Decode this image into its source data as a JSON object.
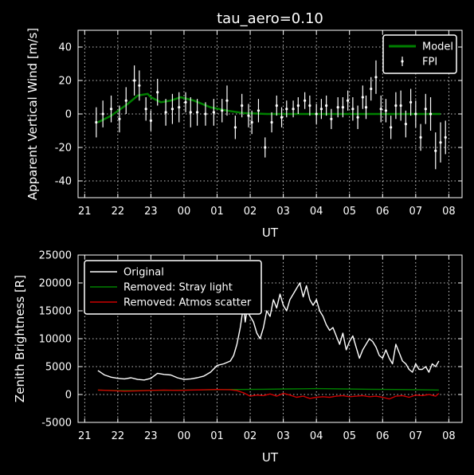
{
  "chart_data": [
    {
      "type": "line",
      "title": "tau_aero=0.10",
      "xlabel": "UT",
      "ylabel": "Apparent Vertical Wind [m/s]",
      "xlim": [
        20.8,
        32.4
      ],
      "ylim": [
        -50,
        50
      ],
      "xticks": [
        21,
        22,
        23,
        24,
        25,
        26,
        27,
        28,
        29,
        30,
        31,
        32
      ],
      "xtick_labels": [
        "21",
        "22",
        "23",
        "00",
        "01",
        "02",
        "03",
        "04",
        "05",
        "06",
        "07",
        "08"
      ],
      "yticks": [
        -40,
        -20,
        0,
        20,
        40
      ],
      "grid": true,
      "legend_position": "top-right",
      "series": [
        {
          "name": "Model",
          "kind": "line",
          "color": "#008000",
          "x": [
            21.4,
            21.8,
            22.3,
            22.6,
            22.9,
            23.0,
            23.3,
            23.6,
            23.9,
            24.3,
            24.8,
            25.3,
            25.8,
            26.5,
            27.5,
            28.5,
            29.5,
            30.5,
            31.3,
            31.75
          ],
          "y": [
            -5,
            -1,
            6,
            11,
            12,
            10,
            7,
            8,
            10,
            8,
            4,
            2,
            0.5,
            0,
            0,
            0,
            0,
            0,
            0,
            0
          ]
        },
        {
          "name": "FPI",
          "kind": "errorbar",
          "color": "#ffffff",
          "x": [
            21.35,
            21.55,
            21.8,
            22.05,
            22.25,
            22.5,
            22.65,
            22.85,
            23.0,
            23.2,
            23.45,
            23.65,
            23.85,
            24.05,
            24.2,
            24.4,
            24.65,
            24.9,
            25.15,
            25.3,
            25.55,
            25.75,
            25.95,
            26.05,
            26.25,
            26.45,
            26.65,
            26.8,
            26.95,
            27.1,
            27.3,
            27.45,
            27.65,
            27.8,
            28.0,
            28.15,
            28.3,
            28.45,
            28.65,
            28.8,
            28.95,
            29.1,
            29.25,
            29.4,
            29.5,
            29.65,
            29.8,
            29.95,
            30.1,
            30.25,
            30.4,
            30.55,
            30.7,
            30.85,
            31.0,
            31.15,
            31.3,
            31.45,
            31.6,
            31.75,
            31.9
          ],
          "y": [
            -5,
            0,
            3,
            -3,
            8,
            20,
            17,
            3,
            -4,
            13,
            1,
            3,
            4,
            7,
            1,
            1,
            0,
            1,
            2,
            8,
            -8,
            5,
            -1,
            -5,
            2,
            -20,
            -5,
            5,
            -2,
            3,
            3,
            5,
            8,
            5,
            0,
            3,
            5,
            -3,
            4,
            4,
            8,
            3,
            -2,
            10,
            4,
            15,
            22,
            3,
            2,
            -8,
            5,
            5,
            -6,
            7,
            0,
            -14,
            3,
            0,
            -22,
            -17,
            -14
          ],
          "yerr": [
            9,
            8,
            8,
            8,
            8,
            9,
            9,
            7,
            6,
            8,
            8,
            9,
            9,
            6,
            9,
            8,
            7,
            8,
            7,
            9,
            7,
            7,
            7,
            7,
            7,
            6,
            6,
            6,
            6,
            5,
            5,
            5,
            5,
            6,
            6,
            6,
            6,
            6,
            6,
            6,
            6,
            7,
            7,
            7,
            7,
            7,
            10,
            8,
            7,
            7,
            8,
            9,
            8,
            8,
            8,
            8,
            9,
            10,
            11,
            12,
            10
          ]
        }
      ]
    },
    {
      "type": "line",
      "title": "",
      "xlabel": "UT",
      "ylabel": "Zenith Brightness [R]",
      "xlim": [
        20.8,
        32.4
      ],
      "ylim": [
        -5000,
        25000
      ],
      "xticks": [
        21,
        22,
        23,
        24,
        25,
        26,
        27,
        28,
        29,
        30,
        31,
        32
      ],
      "xtick_labels": [
        "21",
        "22",
        "23",
        "00",
        "01",
        "02",
        "03",
        "04",
        "05",
        "06",
        "07",
        "08"
      ],
      "yticks": [
        -5000,
        0,
        5000,
        10000,
        15000,
        20000,
        25000
      ],
      "grid": true,
      "legend_position": "top-left",
      "series": [
        {
          "name": "Original",
          "color": "#ffffff",
          "x": [
            21.4,
            21.6,
            21.8,
            22.0,
            22.2,
            22.4,
            22.6,
            22.8,
            23.0,
            23.2,
            23.4,
            23.6,
            23.8,
            24.0,
            24.2,
            24.4,
            24.6,
            24.8,
            25.0,
            25.2,
            25.4,
            25.5,
            25.6,
            25.7,
            25.75,
            25.8,
            25.85,
            25.9,
            26.0,
            26.1,
            26.2,
            26.3,
            26.4,
            26.5,
            26.6,
            26.7,
            26.8,
            26.9,
            27.0,
            27.1,
            27.2,
            27.3,
            27.4,
            27.5,
            27.6,
            27.7,
            27.8,
            27.9,
            28.0,
            28.1,
            28.2,
            28.3,
            28.4,
            28.5,
            28.6,
            28.7,
            28.8,
            28.9,
            29.0,
            29.1,
            29.2,
            29.3,
            29.4,
            29.5,
            29.6,
            29.7,
            29.8,
            29.9,
            30.0,
            30.1,
            30.2,
            30.3,
            30.4,
            30.5,
            30.6,
            30.7,
            30.8,
            30.9,
            31.0,
            31.1,
            31.2,
            31.3,
            31.4,
            31.5,
            31.6,
            31.7
          ],
          "y": [
            4300,
            3500,
            3100,
            2900,
            2800,
            3000,
            2700,
            2600,
            2900,
            3800,
            3600,
            3500,
            3000,
            2700,
            2800,
            3000,
            3300,
            4000,
            5200,
            5500,
            6000,
            7000,
            9000,
            12000,
            14000,
            16000,
            13000,
            15000,
            14000,
            13000,
            11000,
            10000,
            12000,
            15000,
            14000,
            17000,
            15500,
            18000,
            16000,
            15000,
            17000,
            18000,
            19000,
            20000,
            17500,
            19500,
            17000,
            16000,
            17000,
            15000,
            14000,
            12500,
            11500,
            12000,
            10500,
            9000,
            11000,
            8000,
            9500,
            10500,
            8500,
            6500,
            8000,
            9000,
            10000,
            9500,
            8500,
            7000,
            6500,
            8000,
            6500,
            5500,
            9000,
            7500,
            6000,
            5500,
            4500,
            4000,
            5500,
            4500,
            4500,
            5000,
            4000,
            5500,
            5000,
            6000
          ]
        },
        {
          "name": "Removed: Stray light",
          "color": "#008000",
          "x": [
            21.4,
            22.0,
            22.6,
            23.2,
            24.0,
            24.8,
            25.6,
            26.4,
            27.2,
            28.0,
            28.8,
            29.6,
            30.4,
            31.2,
            31.7
          ],
          "y": [
            800,
            700,
            700,
            750,
            800,
            850,
            900,
            950,
            1000,
            1050,
            1000,
            950,
            900,
            850,
            800
          ]
        },
        {
          "name": "Removed: Atmos scatter",
          "color": "#cc0000",
          "x": [
            21.4,
            21.8,
            22.2,
            22.6,
            23.0,
            23.4,
            23.8,
            24.2,
            24.6,
            25.0,
            25.4,
            25.6,
            25.8,
            26.0,
            26.2,
            26.4,
            26.6,
            26.8,
            27.0,
            27.2,
            27.4,
            27.6,
            27.8,
            28.0,
            28.2,
            28.4,
            28.6,
            28.8,
            29.0,
            29.2,
            29.4,
            29.6,
            29.8,
            30.0,
            30.2,
            30.4,
            30.6,
            30.8,
            31.0,
            31.2,
            31.4,
            31.6,
            31.7
          ],
          "y": [
            800,
            700,
            600,
            650,
            750,
            800,
            750,
            800,
            850,
            900,
            850,
            700,
            300,
            -300,
            -100,
            -200,
            100,
            -300,
            200,
            -100,
            -500,
            -300,
            -700,
            -500,
            -400,
            -500,
            -300,
            -200,
            -400,
            -300,
            -200,
            -400,
            -300,
            -500,
            -800,
            -300,
            -200,
            -500,
            -100,
            -200,
            0,
            -300,
            200
          ]
        }
      ]
    }
  ]
}
